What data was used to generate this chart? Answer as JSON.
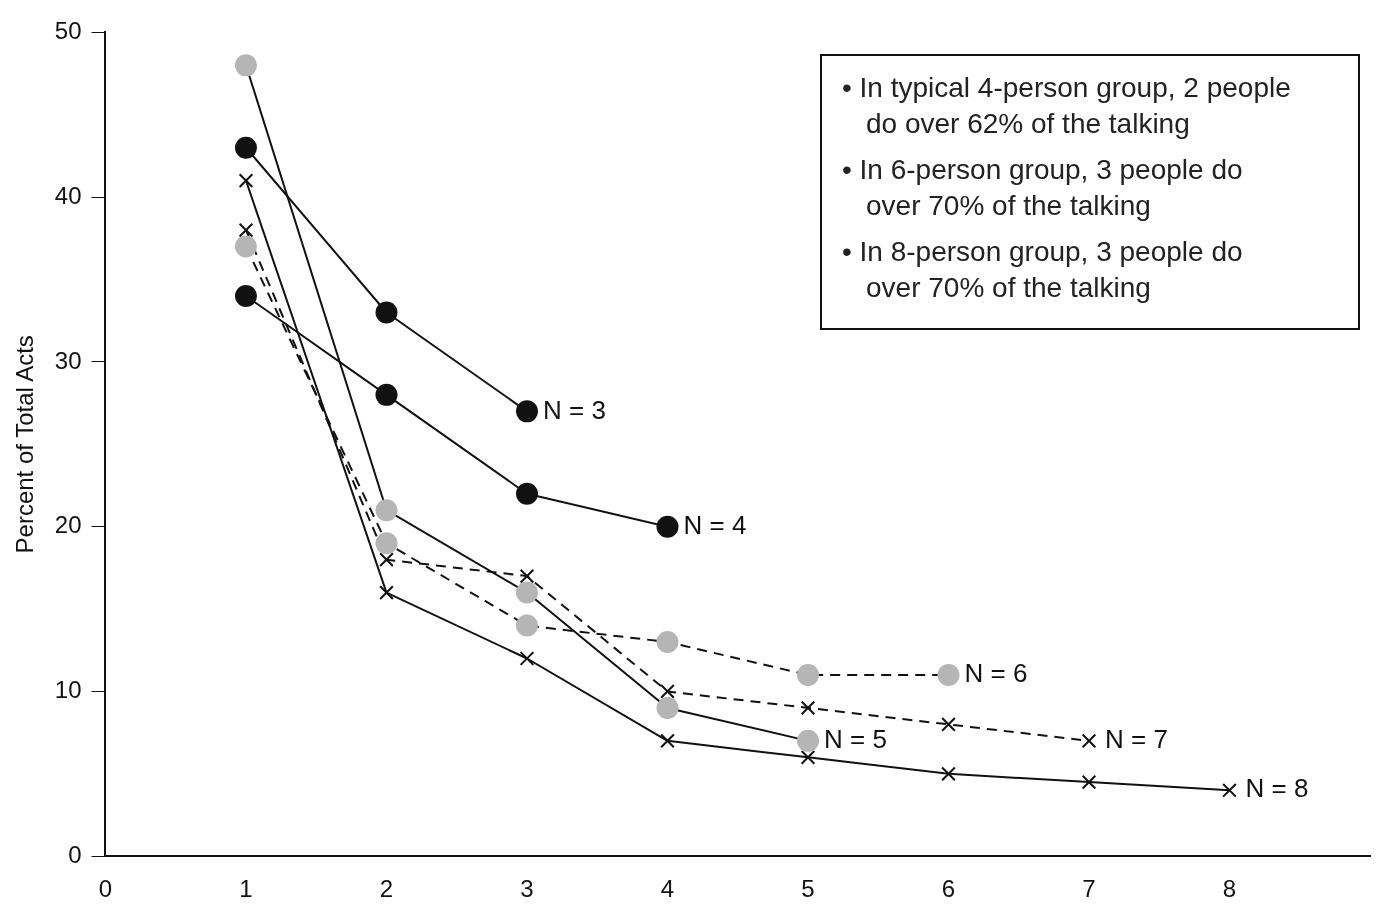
{
  "chart_data": {
    "type": "line",
    "ylabel": "Percent of Total Acts",
    "x": [
      1,
      2,
      3,
      4,
      5,
      6,
      7,
      8
    ],
    "xlim": [
      0,
      9
    ],
    "xticks": [
      0,
      1,
      2,
      3,
      4,
      5,
      6,
      7,
      8
    ],
    "ylim": [
      0,
      50
    ],
    "yticks": [
      0,
      10,
      20,
      30,
      40,
      50
    ],
    "grid": false,
    "legend": false,
    "annotations": [
      "• In typical 4-person group, 2 people do over 62% of the talking",
      "• In 6-person group, 3 people do over 70% of the talking",
      "• In 8-person group, 3 people do over 70% of the talking"
    ],
    "series": [
      {
        "name": "N = 3",
        "color": "#111111",
        "marker": "circle",
        "line_style": "solid",
        "values": [
          43,
          33,
          27,
          null,
          null,
          null,
          null,
          null
        ]
      },
      {
        "name": "N = 4",
        "color": "#111111",
        "marker": "circle",
        "line_style": "solid",
        "values": [
          34,
          28,
          22,
          20,
          null,
          null,
          null,
          null
        ]
      },
      {
        "name": "N = 5",
        "color": "#b5b5b5",
        "marker": "circle",
        "line_style": "solid",
        "values": [
          48,
          21,
          16,
          9,
          7,
          null,
          null,
          null
        ]
      },
      {
        "name": "N = 6",
        "color": "#b5b5b5",
        "marker": "circle",
        "line_style": "dashed",
        "values": [
          37,
          19,
          14,
          13,
          11,
          11,
          null,
          null
        ]
      },
      {
        "name": "N = 7",
        "color": "#111111",
        "marker": "cross",
        "line_style": "dashed",
        "values": [
          38,
          18,
          17,
          10,
          9,
          8,
          7,
          null
        ]
      },
      {
        "name": "N = 8",
        "color": "#111111",
        "marker": "cross",
        "line_style": "solid",
        "values": [
          41,
          16,
          12,
          7,
          6,
          5,
          4.5,
          4
        ]
      }
    ]
  }
}
